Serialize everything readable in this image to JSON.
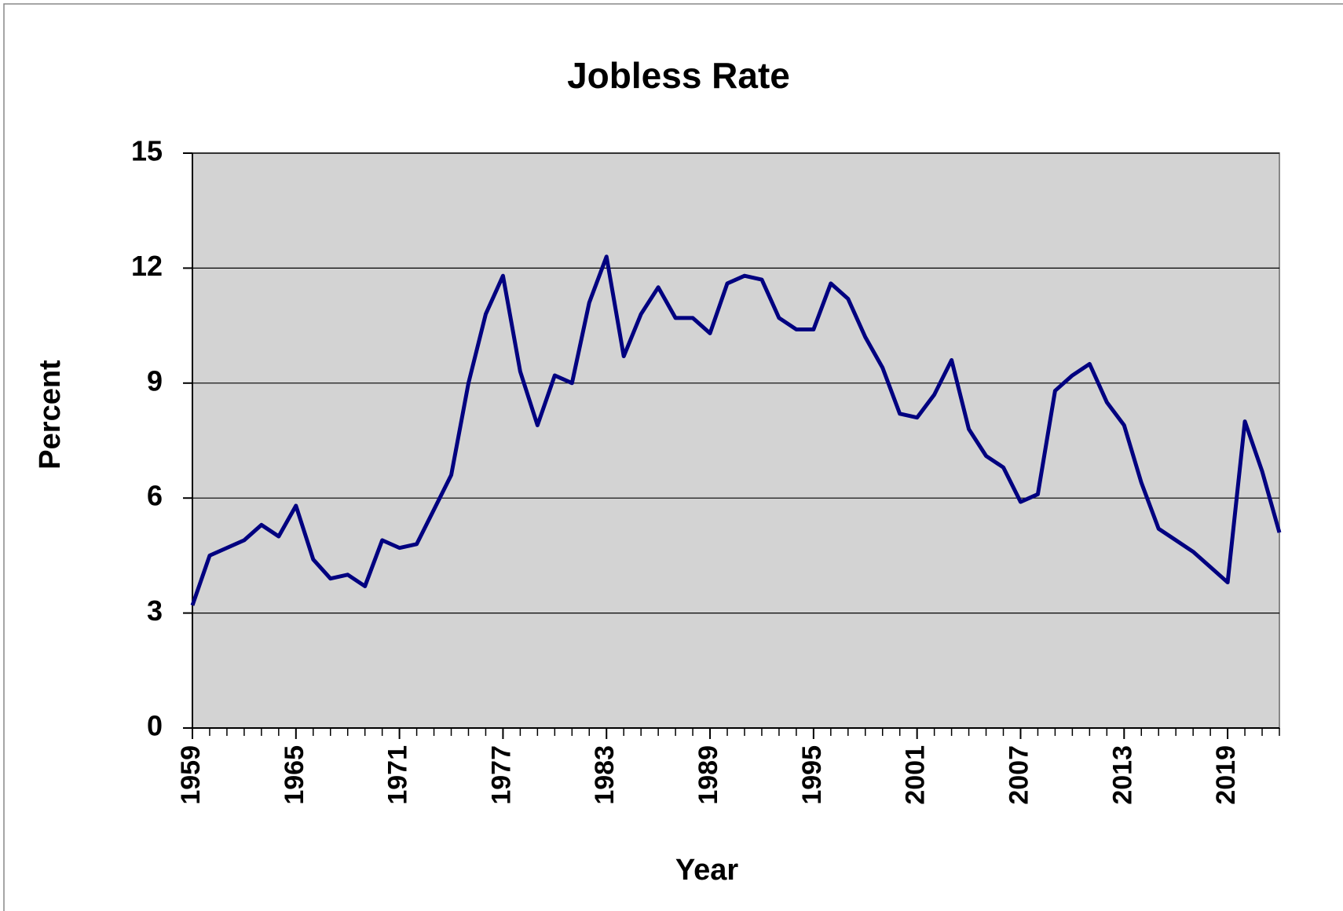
{
  "chart_data": {
    "type": "line",
    "title": "Jobless Rate",
    "x_label": "Year",
    "y_label": "Percent",
    "x": [
      1959,
      1960,
      1961,
      1962,
      1963,
      1964,
      1965,
      1966,
      1967,
      1968,
      1969,
      1970,
      1971,
      1972,
      1973,
      1974,
      1975,
      1976,
      1977,
      1978,
      1979,
      1980,
      1981,
      1982,
      1983,
      1984,
      1985,
      1986,
      1987,
      1988,
      1989,
      1990,
      1991,
      1992,
      1993,
      1994,
      1995,
      1996,
      1997,
      1998,
      1999,
      2000,
      2001,
      2002,
      2003,
      2004,
      2005,
      2006,
      2007,
      2008,
      2009,
      2010,
      2011,
      2012,
      2013,
      2014,
      2015,
      2016,
      2017,
      2018,
      2019,
      2020,
      2021,
      2022
    ],
    "series": [
      {
        "name": "Jobless Rate",
        "color": "#000080",
        "values": [
          3.2,
          4.5,
          4.7,
          4.9,
          5.3,
          5.0,
          5.8,
          4.4,
          3.9,
          4.0,
          3.7,
          4.9,
          4.7,
          4.8,
          5.7,
          6.6,
          9.0,
          10.8,
          11.8,
          9.3,
          7.9,
          9.2,
          9.0,
          11.1,
          12.3,
          9.7,
          10.8,
          11.5,
          10.7,
          10.7,
          10.3,
          11.6,
          11.8,
          11.7,
          10.7,
          10.4,
          10.4,
          11.6,
          11.2,
          10.2,
          9.4,
          8.2,
          8.1,
          8.7,
          9.6,
          7.8,
          7.1,
          6.8,
          5.9,
          6.1,
          8.8,
          9.2,
          9.5,
          8.5,
          7.9,
          6.4,
          5.2,
          4.9,
          4.6,
          4.2,
          3.8,
          8.0,
          6.7,
          5.1
        ]
      }
    ],
    "xlim": [
      1959,
      2022
    ],
    "xticks": [
      1959,
      1965,
      1971,
      1977,
      1983,
      1989,
      1995,
      2001,
      2007,
      2013,
      2019
    ],
    "ylim": [
      0,
      15
    ],
    "yticks": [
      0,
      3,
      6,
      9,
      12,
      15
    ],
    "grid": true,
    "plot_background": "#d3d3d3"
  }
}
